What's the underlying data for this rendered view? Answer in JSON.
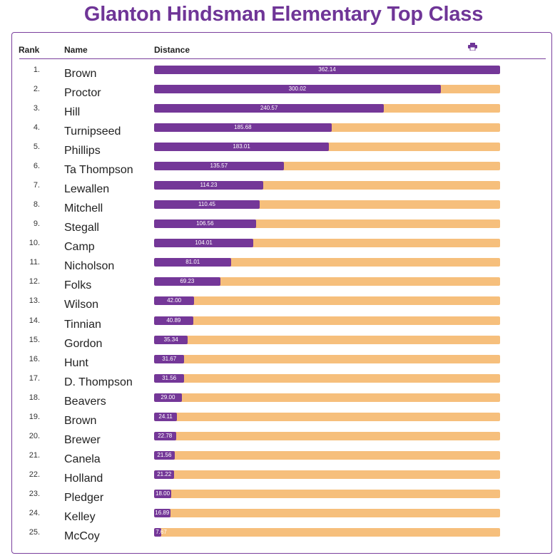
{
  "page": {
    "title": "Glanton Hindsman Elementary Top Class"
  },
  "table": {
    "headers": {
      "rank": "Rank",
      "name": "Name",
      "distance": "Distance"
    },
    "print_icon": "print-icon",
    "max_distance": 362.14,
    "colors": {
      "bar": "#743798",
      "track": "#f6bf7c",
      "accent": "#6f3597"
    },
    "rows": [
      {
        "rank": "1.",
        "name": "Brown",
        "distance": "362.14"
      },
      {
        "rank": "2.",
        "name": "Proctor",
        "distance": "300.02"
      },
      {
        "rank": "3.",
        "name": "Hill",
        "distance": "240.57"
      },
      {
        "rank": "4.",
        "name": "Turnipseed",
        "distance": "185.68"
      },
      {
        "rank": "5.",
        "name": "Phillips",
        "distance": "183.01"
      },
      {
        "rank": "6.",
        "name": "Ta Thompson",
        "distance": "135.57"
      },
      {
        "rank": "7.",
        "name": "Lewallen",
        "distance": "114.23"
      },
      {
        "rank": "8.",
        "name": "Mitchell",
        "distance": "110.45"
      },
      {
        "rank": "9.",
        "name": "Stegall",
        "distance": "106.56"
      },
      {
        "rank": "10.",
        "name": "Camp",
        "distance": "104.01"
      },
      {
        "rank": "11.",
        "name": "Nicholson",
        "distance": "81.01"
      },
      {
        "rank": "12.",
        "name": "Folks",
        "distance": "69.23"
      },
      {
        "rank": "13.",
        "name": "Wilson",
        "distance": "42.00"
      },
      {
        "rank": "14.",
        "name": "Tinnian",
        "distance": "40.89"
      },
      {
        "rank": "15.",
        "name": "Gordon",
        "distance": "35.34"
      },
      {
        "rank": "16.",
        "name": "Hunt",
        "distance": "31.67"
      },
      {
        "rank": "17.",
        "name": "D. Thompson",
        "distance": "31.56"
      },
      {
        "rank": "18.",
        "name": "Beavers",
        "distance": "29.00"
      },
      {
        "rank": "19.",
        "name": "Brown",
        "distance": "24.11"
      },
      {
        "rank": "20.",
        "name": "Brewer",
        "distance": "22.78"
      },
      {
        "rank": "21.",
        "name": "Canela",
        "distance": "21.56"
      },
      {
        "rank": "22.",
        "name": "Holland",
        "distance": "21.22"
      },
      {
        "rank": "23.",
        "name": "Pledger",
        "distance": "18.00"
      },
      {
        "rank": "24.",
        "name": "Kelley",
        "distance": "16.89"
      },
      {
        "rank": "25.",
        "name": "McCoy",
        "distance": "7.67"
      }
    ]
  }
}
